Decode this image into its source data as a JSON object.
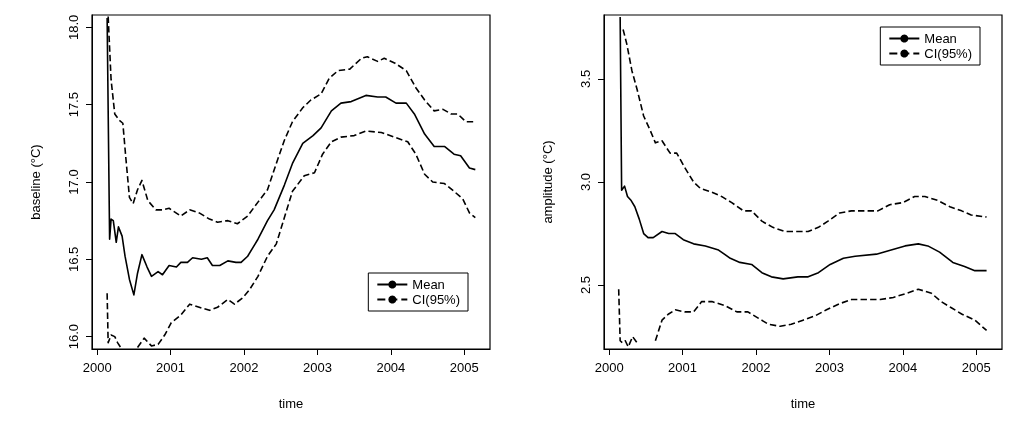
{
  "chart_data": [
    {
      "type": "line",
      "xlabel": "time",
      "ylabel": "baseline (°C)",
      "xlim": [
        1999.93,
        2005.35
      ],
      "ylim": [
        15.92,
        18.08
      ],
      "xticks": [
        2000,
        2001,
        2002,
        2003,
        2004,
        2005
      ],
      "yticks": [
        {
          "value": 16,
          "label": "16.0"
        },
        16.5,
        {
          "value": 17,
          "label": "17.0"
        },
        17.5,
        {
          "value": 18,
          "label": "18.0"
        }
      ],
      "grid": false,
      "legend": "bottom right",
      "series": [
        {
          "name": "Mean",
          "color": "#000000",
          "line_style": "solid",
          "x": [
            2000.136,
            2000.17,
            2000.19,
            2000.22,
            2000.26,
            2000.29,
            2000.34,
            2000.38,
            2000.44,
            2000.5,
            2000.55,
            2000.61,
            2000.68,
            2000.74,
            2000.83,
            2000.89,
            2000.98,
            2001.08,
            2001.14,
            2001.23,
            2001.3,
            2001.42,
            2001.5,
            2001.57,
            2001.67,
            2001.78,
            2001.89,
            2001.96,
            2002.05,
            2002.19,
            2002.32,
            2002.41,
            2002.55,
            2002.66,
            2002.8,
            2002.94,
            2003.05,
            2003.19,
            2003.32,
            2003.46,
            2003.66,
            2003.82,
            2003.93,
            2004.07,
            2004.21,
            2004.32,
            2004.46,
            2004.59,
            2004.73,
            2004.86,
            2004.95,
            2005.07,
            2005.15
          ],
          "values": [
            18.06,
            16.63,
            16.76,
            16.75,
            16.61,
            16.71,
            16.65,
            16.52,
            16.37,
            16.27,
            16.41,
            16.53,
            16.45,
            16.39,
            16.42,
            16.4,
            16.46,
            16.45,
            16.48,
            16.48,
            16.51,
            16.5,
            16.51,
            16.46,
            16.46,
            16.49,
            16.48,
            16.48,
            16.52,
            16.63,
            16.75,
            16.82,
            16.98,
            17.12,
            17.25,
            17.3,
            17.35,
            17.46,
            17.51,
            17.52,
            17.56,
            17.55,
            17.55,
            17.51,
            17.51,
            17.44,
            17.31,
            17.23,
            17.23,
            17.18,
            17.17,
            17.09,
            17.08
          ]
        },
        {
          "name": "CI(95%)",
          "color": "#000000",
          "line_style": "dashed",
          "x": [
            2000.15,
            2000.19,
            2000.24,
            2000.3,
            2000.35,
            2000.39,
            2000.44,
            2000.49,
            2000.55,
            2000.61,
            2000.69,
            2000.8,
            2000.89,
            2000.98,
            2001.14,
            2001.26,
            2001.39,
            2001.53,
            2001.64,
            2001.78,
            2001.91,
            2002.05,
            2002.19,
            2002.32,
            2002.44,
            2002.55,
            2002.66,
            2002.8,
            2002.91,
            2003.05,
            2003.16,
            2003.28,
            2003.44,
            2003.6,
            2003.68,
            2003.82,
            2003.91,
            2004.05,
            2004.21,
            2004.34,
            2004.46,
            2004.59,
            2004.71,
            2004.82,
            2004.91,
            2005.02,
            2005.15
          ],
          "values": [
            18.07,
            17.66,
            17.44,
            17.4,
            17.38,
            17.16,
            16.9,
            16.86,
            16.95,
            17.01,
            16.88,
            16.82,
            16.82,
            16.83,
            16.78,
            16.82,
            16.8,
            16.76,
            16.74,
            16.75,
            16.73,
            16.78,
            16.87,
            16.95,
            17.12,
            17.27,
            17.39,
            17.48,
            17.53,
            17.57,
            17.67,
            17.72,
            17.73,
            17.8,
            17.81,
            17.78,
            17.8,
            17.77,
            17.72,
            17.61,
            17.53,
            17.46,
            17.47,
            17.44,
            17.44,
            17.39,
            17.39
          ]
        },
        {
          "color": "#000000",
          "line_style": "dashed",
          "x": [
            2000.136,
            2000.15,
            2000.19,
            2000.24,
            2000.28,
            2000.32,
            2000.45,
            2000.55,
            2000.64,
            2000.74,
            2000.83,
            2000.92,
            2001.01,
            2001.14,
            2001.26,
            2001.39,
            2001.53,
            2001.64,
            2001.78,
            2001.87,
            2001.98,
            2002.07,
            2002.19,
            2002.32,
            2002.44,
            2002.55,
            2002.66,
            2002.82,
            2002.96,
            2003.07,
            2003.19,
            2003.32,
            2003.5,
            2003.66,
            2003.87,
            2004.05,
            2004.23,
            2004.34,
            2004.46,
            2004.57,
            2004.73,
            2004.86,
            2004.98,
            2005.07,
            2005.15
          ],
          "values": [
            16.28,
            15.96,
            16.01,
            16.0,
            15.96,
            15.93,
            null,
            15.93,
            15.99,
            15.94,
            15.95,
            16.01,
            16.09,
            16.14,
            16.21,
            16.19,
            16.17,
            16.19,
            16.24,
            16.21,
            16.25,
            16.3,
            16.39,
            16.52,
            16.6,
            16.77,
            16.94,
            17.04,
            17.06,
            17.18,
            17.26,
            17.29,
            17.3,
            17.33,
            17.32,
            17.29,
            17.26,
            17.18,
            17.05,
            17.0,
            16.99,
            16.94,
            16.89,
            16.8,
            16.77
          ]
        }
      ]
    },
    {
      "type": "line",
      "xlabel": "time",
      "ylabel": "amplitude (°C)",
      "xlim": [
        1999.93,
        2005.35
      ],
      "ylim": [
        2.19,
        3.81
      ],
      "xticks": [
        2000,
        2001,
        2002,
        2003,
        2004,
        2005
      ],
      "yticks": [
        2.5,
        {
          "value": 3,
          "label": "3.0"
        },
        3.5
      ],
      "grid": false,
      "legend": "top right",
      "series": [
        {
          "name": "Mean",
          "color": "#000000",
          "line_style": "solid",
          "x": [
            2000.15,
            2000.17,
            2000.21,
            2000.25,
            2000.3,
            2000.35,
            2000.41,
            2000.47,
            2000.53,
            2000.6,
            2000.72,
            2000.81,
            2000.9,
            2001.01,
            2001.15,
            2001.31,
            2001.49,
            2001.65,
            2001.78,
            2001.94,
            2002.08,
            2002.21,
            2002.37,
            2002.57,
            2002.71,
            2002.85,
            2003.01,
            2003.19,
            2003.35,
            2003.64,
            2003.84,
            2004.03,
            2004.21,
            2004.34,
            2004.5,
            2004.68,
            2004.84,
            2004.98,
            2005.14
          ],
          "values": [
            3.8,
            2.96,
            2.98,
            2.93,
            2.91,
            2.88,
            2.82,
            2.75,
            2.73,
            2.73,
            2.76,
            2.75,
            2.75,
            2.72,
            2.7,
            2.69,
            2.67,
            2.63,
            2.61,
            2.6,
            2.56,
            2.54,
            2.53,
            2.54,
            2.54,
            2.56,
            2.6,
            2.63,
            2.64,
            2.65,
            2.67,
            2.69,
            2.7,
            2.69,
            2.66,
            2.61,
            2.59,
            2.57,
            2.57
          ]
        },
        {
          "name": "CI(95%)",
          "color": "#000000",
          "line_style": "dashed",
          "x": [
            2000.19,
            2000.24,
            2000.31,
            2000.38,
            2000.47,
            2000.56,
            2000.63,
            2000.72,
            2000.83,
            2000.92,
            2001.03,
            2001.15,
            2001.24,
            2001.4,
            2001.53,
            2001.67,
            2001.83,
            2001.94,
            2002.08,
            2002.23,
            2002.39,
            2002.55,
            2002.71,
            2002.85,
            2002.98,
            2003.14,
            2003.3,
            2003.48,
            2003.66,
            2003.82,
            2004.0,
            2004.16,
            2004.3,
            2004.48,
            2004.64,
            2004.8,
            2004.93,
            2005.14
          ],
          "values": [
            3.74,
            3.67,
            3.54,
            3.45,
            3.32,
            3.25,
            3.19,
            3.2,
            3.14,
            3.14,
            3.07,
            3.0,
            2.97,
            2.95,
            2.93,
            2.9,
            2.86,
            2.86,
            2.81,
            2.78,
            2.76,
            2.76,
            2.76,
            2.78,
            2.81,
            2.85,
            2.86,
            2.86,
            2.86,
            2.89,
            2.9,
            2.93,
            2.93,
            2.91,
            2.88,
            2.86,
            2.84,
            2.83
          ]
        },
        {
          "color": "#000000",
          "line_style": "dashed",
          "x": [
            2000.13,
            2000.15,
            2000.18,
            2000.22,
            2000.26,
            2000.32,
            2000.38,
            2000.42,
            2000.5,
            2000.56,
            2000.63,
            2000.72,
            2000.81,
            2000.9,
            2001.03,
            2001.15,
            2001.26,
            2001.4,
            2001.58,
            2001.74,
            2001.89,
            2002.03,
            2002.17,
            2002.33,
            2002.48,
            2002.64,
            2002.8,
            2002.96,
            2003.14,
            2003.3,
            2003.48,
            2003.69,
            2003.87,
            2004.05,
            2004.21,
            2004.39,
            2004.52,
            2004.66,
            2004.8,
            2004.98,
            2005.14
          ],
          "values": [
            2.48,
            2.23,
            2.22,
            2.23,
            2.2,
            2.25,
            2.22,
            null,
            null,
            null,
            2.23,
            2.33,
            2.36,
            2.38,
            2.37,
            2.37,
            2.42,
            2.42,
            2.4,
            2.37,
            2.37,
            2.34,
            2.31,
            2.3,
            2.31,
            2.33,
            2.35,
            2.38,
            2.41,
            2.43,
            2.43,
            2.43,
            2.44,
            2.46,
            2.48,
            2.46,
            2.42,
            2.39,
            2.36,
            2.33,
            2.28
          ]
        }
      ]
    }
  ]
}
